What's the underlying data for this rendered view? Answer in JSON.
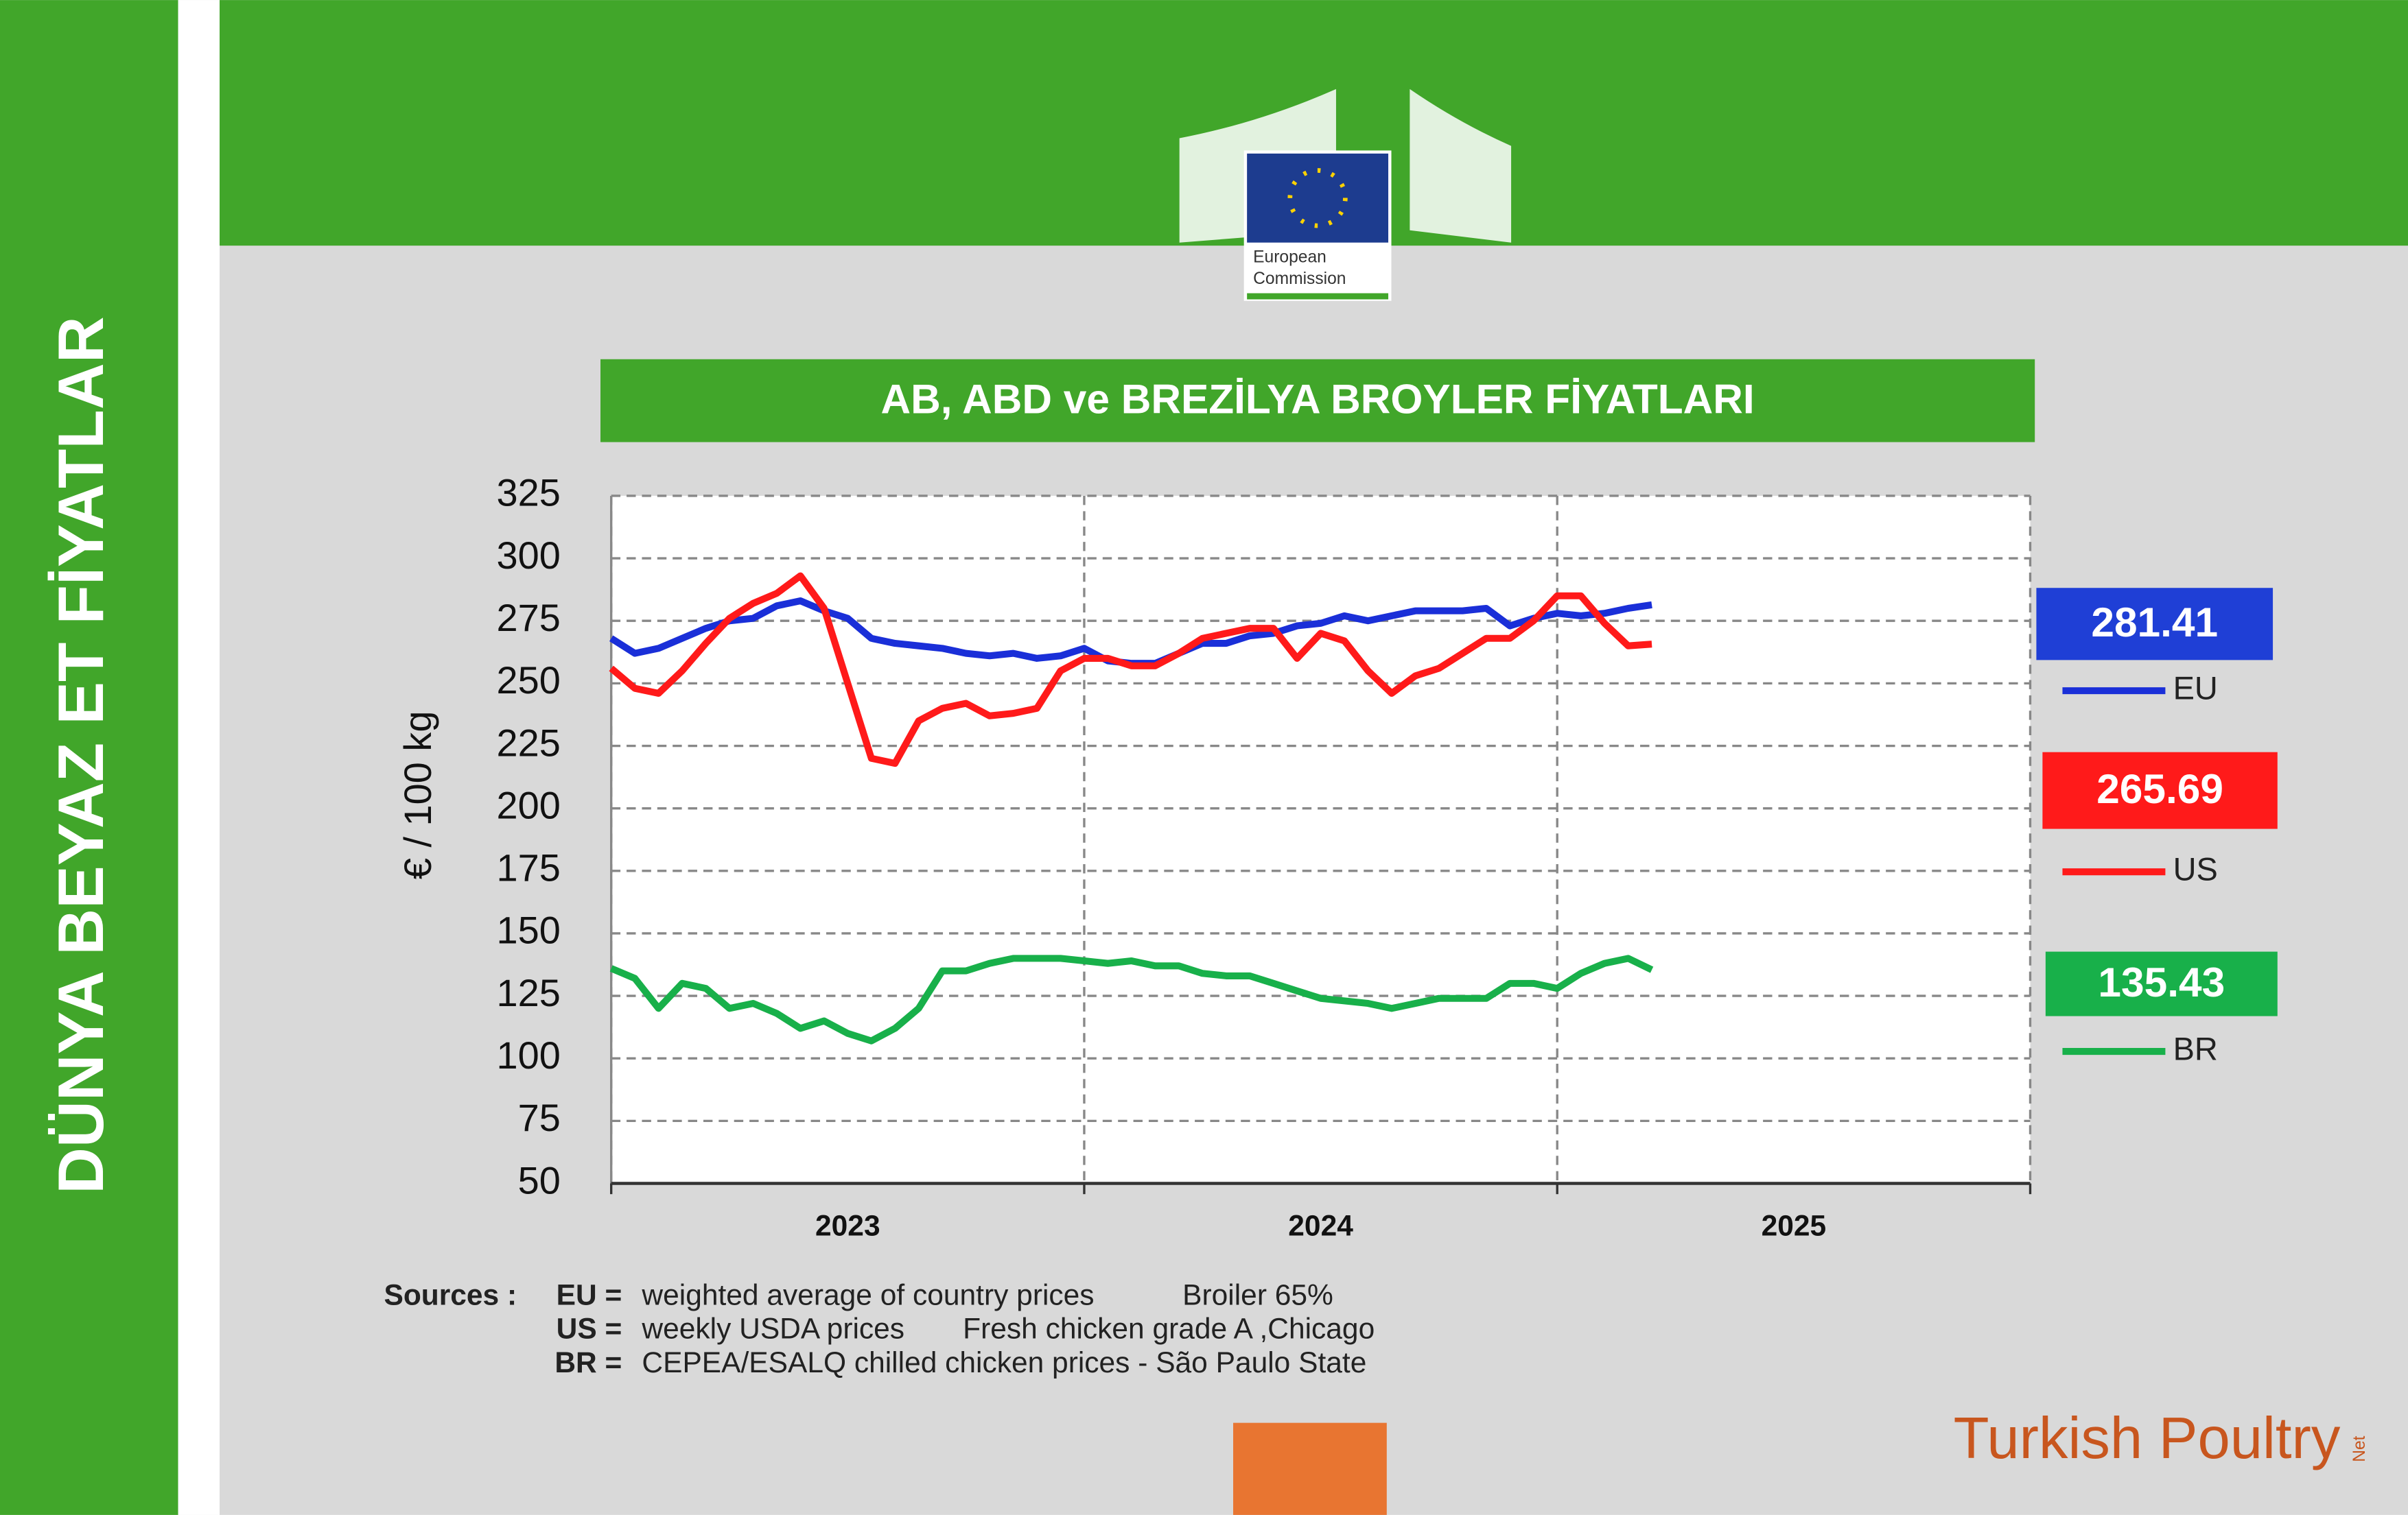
{
  "sidebar_title": "DÜNYA BEYAZ ET FİYATLAR",
  "logo": {
    "line1": "European",
    "line2": "Commission"
  },
  "chart_data": {
    "type": "line",
    "title": "AB, ABD ve BREZİLYA BROYLER FİYATLARI",
    "y_label": "€ / 100 kg",
    "categories": [
      "2023",
      "2024",
      "2025"
    ],
    "xlim": [
      2023,
      2026
    ],
    "x": [
      2023,
      2023.05,
      2023.1,
      2023.15,
      2023.2,
      2023.25,
      2023.3,
      2023.35,
      2023.4,
      2023.45,
      2023.5,
      2023.55,
      2023.6,
      2023.65,
      2023.7,
      2023.75,
      2023.8,
      2023.85,
      2023.9,
      2023.95,
      2024,
      2024.05,
      2024.1,
      2024.15,
      2024.2,
      2024.25,
      2024.3,
      2024.35,
      2024.4,
      2024.45,
      2024.5,
      2024.55,
      2024.6,
      2024.65,
      2024.7,
      2024.75,
      2024.8,
      2024.85,
      2024.9,
      2024.95,
      2025,
      2025.05,
      2025.1,
      2025.15,
      2025.2
    ],
    "ylim": [
      50,
      325
    ],
    "yticks": [
      50,
      75,
      100,
      125,
      150,
      175,
      200,
      225,
      250,
      275,
      300,
      325
    ],
    "grid": true,
    "series": [
      {
        "name": "EU",
        "color": "#1a2fd8",
        "label_color": "#1f3fd6",
        "values": [
          268,
          262,
          264,
          268,
          272,
          275,
          276,
          281,
          283,
          279,
          276,
          268,
          266,
          265,
          264,
          262,
          261,
          262,
          260,
          261,
          264,
          259,
          258,
          258,
          262,
          266,
          266,
          269,
          270,
          273,
          274,
          277,
          275,
          277,
          279,
          279,
          279,
          280,
          273,
          276,
          278,
          277,
          278,
          280,
          281.41
        ]
      },
      {
        "name": "US",
        "color": "#ff1a1a",
        "label_color": "#ff1a1a",
        "values": [
          256,
          248,
          246,
          255,
          266,
          276,
          282,
          286,
          293,
          280,
          250,
          220,
          218,
          235,
          240,
          242,
          237,
          238,
          240,
          255,
          260,
          260,
          257,
          257,
          262,
          268,
          270,
          272,
          272,
          260,
          270,
          267,
          255,
          246,
          253,
          256,
          262,
          268,
          268,
          275,
          285,
          285,
          274,
          265,
          265.69
        ]
      },
      {
        "name": "BR",
        "color": "#18b04a",
        "label_color": "#18b04a",
        "values": [
          136,
          132,
          120,
          130,
          128,
          120,
          122,
          118,
          112,
          115,
          110,
          107,
          112,
          120,
          135,
          135,
          138,
          140,
          140,
          140,
          139,
          138,
          139,
          137,
          137,
          134,
          133,
          133,
          130,
          127,
          124,
          123,
          122,
          120,
          122,
          124,
          124,
          124,
          130,
          130,
          128,
          134,
          138,
          140,
          135.43
        ]
      }
    ]
  },
  "sources": {
    "label": "Sources :",
    "items": [
      {
        "key": "EU =",
        "text": "weighted average of country prices",
        "detail": "Broiler 65%"
      },
      {
        "key": "US =",
        "text": "weekly USDA prices",
        "detail": "Fresh chicken grade A ,Chicago"
      },
      {
        "key": "BR =",
        "text": "CEPEA/ESALQ chilled chicken prices - São Paulo State",
        "detail": null
      }
    ]
  },
  "brand": {
    "name": "Turkish Poultry",
    "suffix": "Net"
  }
}
